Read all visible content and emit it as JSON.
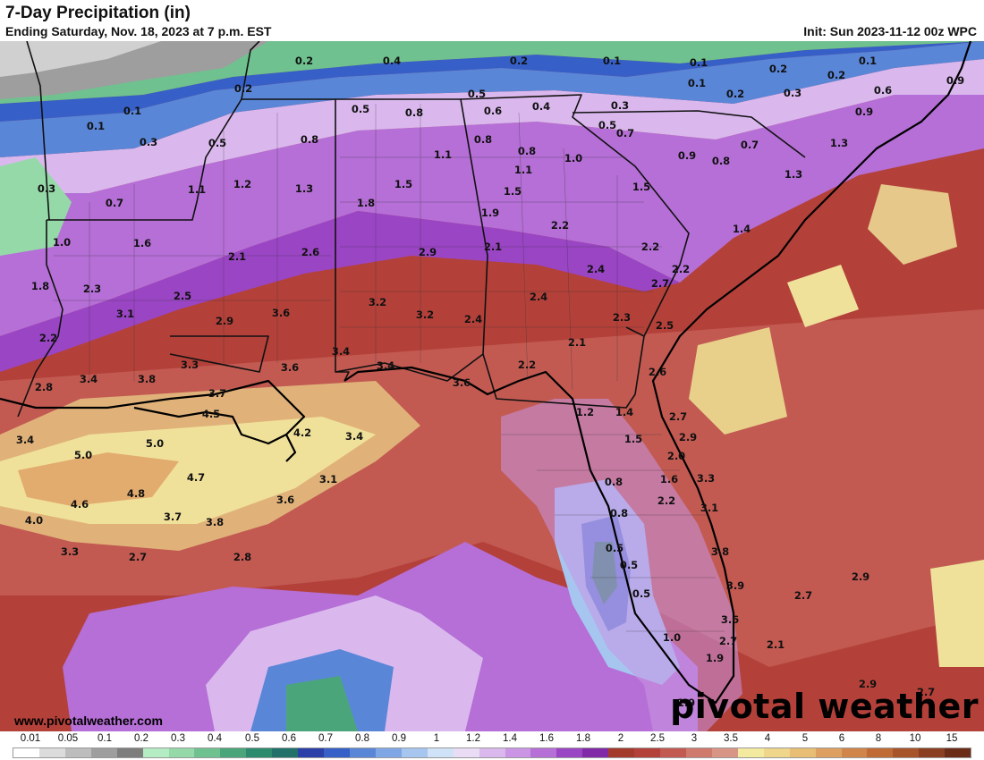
{
  "header": {
    "title": "7-Day Precipitation (in)",
    "subtitle": "Ending Saturday, Nov. 18, 2023 at 7 p.m. EST",
    "init": "Init: Sun 2023-11-12 00z WPC"
  },
  "watermark": {
    "url": "www.pivotalweather.com",
    "brand": "pivotal weather"
  },
  "legend": {
    "labels": [
      "0.01",
      "0.05",
      "0.1",
      "0.2",
      "0.3",
      "0.4",
      "0.5",
      "0.6",
      "0.7",
      "0.8",
      "0.9",
      "1",
      "1.2",
      "1.4",
      "1.6",
      "1.8",
      "2",
      "2.5",
      "3",
      "3.5",
      "4",
      "5",
      "6",
      "8",
      "10",
      "15"
    ],
    "colors": [
      "#ffffff",
      "#dcdcdc",
      "#bdbdbd",
      "#9e9e9e",
      "#7d7d7d",
      "#b4ecc4",
      "#95d9a9",
      "#6fc28f",
      "#4aa67a",
      "#2c8a6d",
      "#21706a",
      "#2a3fa8",
      "#3660c8",
      "#5a86d8",
      "#7fa7e6",
      "#a6c6f0",
      "#cfe2f8",
      "#eadcf5",
      "#dab8ee",
      "#c995e4",
      "#b56fd6",
      "#9a45c4",
      "#802aa7",
      "#a33a2c",
      "#b3413a",
      "#c25a52",
      "#cf7a6d",
      "#d89484",
      "#f3eaa0",
      "#efd68a",
      "#e8bd74",
      "#dea060",
      "#d0854a",
      "#c06a36",
      "#a8542b",
      "#8a3f22",
      "#6b2c17"
    ]
  },
  "map_values": [
    {
      "t": "0.2"
    },
    {
      "t": "0.4"
    },
    {
      "t": "0.2"
    },
    {
      "t": "0.1"
    },
    {
      "t": "0.1"
    },
    {
      "t": "0.1"
    },
    {
      "t": "0.2"
    },
    {
      "t": "0.2"
    },
    {
      "t": "0.2"
    },
    {
      "t": "0.5"
    },
    {
      "t": "0.1"
    },
    {
      "t": "0.2"
    },
    {
      "t": "0.3"
    },
    {
      "t": "0.6"
    },
    {
      "t": "0.9"
    },
    {
      "t": "0.5"
    },
    {
      "t": "0.8"
    },
    {
      "t": "0.6"
    },
    {
      "t": "0.4"
    },
    {
      "t": "0.3"
    },
    {
      "t": "0.9"
    },
    {
      "t": "0.1"
    },
    {
      "t": "0.1"
    },
    {
      "t": "0.7"
    },
    {
      "t": "0.8"
    },
    {
      "t": "0.8"
    },
    {
      "t": "0.5"
    },
    {
      "t": "0.3"
    },
    {
      "t": "0.5"
    },
    {
      "t": "1.1"
    },
    {
      "t": "0.8"
    },
    {
      "t": "1.0"
    },
    {
      "t": "0.7"
    },
    {
      "t": "1.3"
    },
    {
      "t": "0.9"
    },
    {
      "t": "0.8"
    },
    {
      "t": "1.3"
    },
    {
      "t": "0.3"
    },
    {
      "t": "1.1"
    },
    {
      "t": "1.2"
    },
    {
      "t": "1.3"
    },
    {
      "t": "1.5"
    },
    {
      "t": "1.1"
    },
    {
      "t": "1.5"
    },
    {
      "t": "1.5"
    },
    {
      "t": "0.7"
    },
    {
      "t": "1.8"
    },
    {
      "t": "1.9"
    },
    {
      "t": "1.4"
    },
    {
      "t": "1.0"
    },
    {
      "t": "1.6"
    },
    {
      "t": "2.2"
    },
    {
      "t": "2.1"
    },
    {
      "t": "2.1"
    },
    {
      "t": "2.6"
    },
    {
      "t": "2.9"
    },
    {
      "t": "2.2"
    },
    {
      "t": "2.2"
    },
    {
      "t": "2.4"
    },
    {
      "t": "1.8"
    },
    {
      "t": "2.3"
    },
    {
      "t": "2.5"
    },
    {
      "t": "2.7"
    },
    {
      "t": "3.1"
    },
    {
      "t": "2.9"
    },
    {
      "t": "3.6"
    },
    {
      "t": "3.2"
    },
    {
      "t": "3.2"
    },
    {
      "t": "2.4"
    },
    {
      "t": "2.4"
    },
    {
      "t": "2.3"
    },
    {
      "t": "2.5"
    },
    {
      "t": "2.2"
    },
    {
      "t": "3.4"
    },
    {
      "t": "2.1"
    },
    {
      "t": "3.3"
    },
    {
      "t": "3.6"
    },
    {
      "t": "3.4"
    },
    {
      "t": "2.2"
    },
    {
      "t": "2.6"
    },
    {
      "t": "2.8"
    },
    {
      "t": "3.4"
    },
    {
      "t": "3.8"
    },
    {
      "t": "3.7"
    },
    {
      "t": "3.6"
    },
    {
      "t": "4.5"
    },
    {
      "t": "1.2"
    },
    {
      "t": "1.4"
    },
    {
      "t": "2.7"
    },
    {
      "t": "3.4"
    },
    {
      "t": "5.0"
    },
    {
      "t": "4.2"
    },
    {
      "t": "3.4"
    },
    {
      "t": "1.5"
    },
    {
      "t": "2.9"
    },
    {
      "t": "5.0"
    },
    {
      "t": "2.0"
    },
    {
      "t": "4.7"
    },
    {
      "t": "3.1"
    },
    {
      "t": "0.8"
    },
    {
      "t": "1.6"
    },
    {
      "t": "3.3"
    },
    {
      "t": "4.8"
    },
    {
      "t": "3.6"
    },
    {
      "t": "2.2"
    },
    {
      "t": "4.6"
    },
    {
      "t": "0.8"
    },
    {
      "t": "3.1"
    },
    {
      "t": "4.0"
    },
    {
      "t": "3.7"
    },
    {
      "t": "3.8"
    },
    {
      "t": "3.3"
    },
    {
      "t": "2.7"
    },
    {
      "t": "2.8"
    },
    {
      "t": "0.5"
    },
    {
      "t": "3.8"
    },
    {
      "t": "0.5"
    },
    {
      "t": "2.9"
    },
    {
      "t": "0.5"
    },
    {
      "t": "3.9"
    },
    {
      "t": "2.7"
    },
    {
      "t": "3.6"
    },
    {
      "t": "1.0"
    },
    {
      "t": "2.7"
    },
    {
      "t": "2.1"
    },
    {
      "t": "1.9"
    },
    {
      "t": "2.9"
    },
    {
      "t": "2.7"
    },
    {
      "t": "1.9"
    }
  ]
}
